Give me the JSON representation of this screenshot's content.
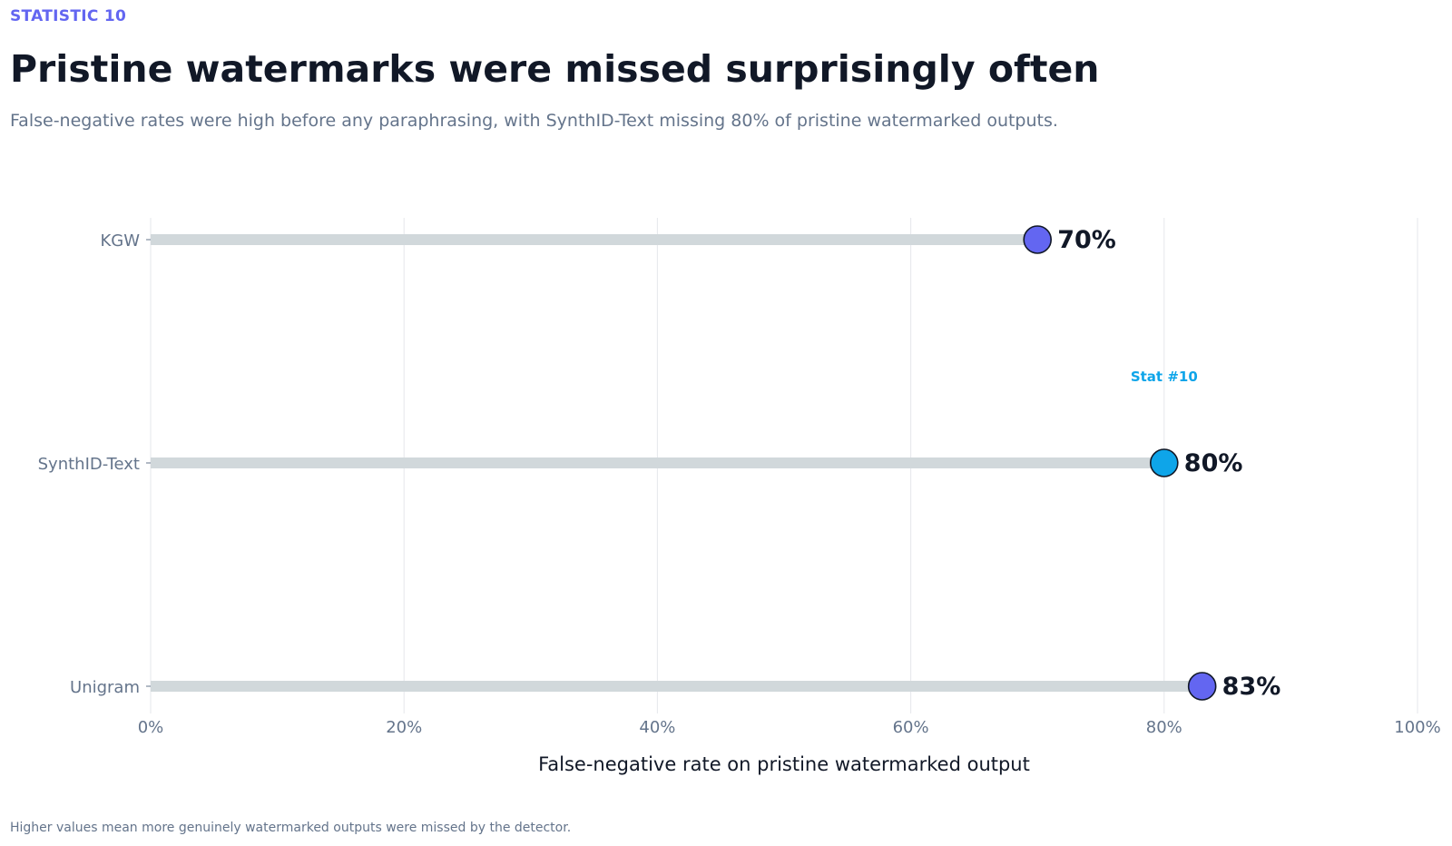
{
  "header": {
    "eyebrow": "STATISTIC 10",
    "title": "Pristine watermarks were missed surprisingly often",
    "subtitle": "False-negative rates were high before any paraphrasing, with SynthID-Text missing 80% of pristine watermarked outputs."
  },
  "footnote": "Higher values mean more genuinely watermarked outputs were missed by the detector.",
  "colors": {
    "default_dot": "#6366f1",
    "highlight_dot": "#0ea5e9",
    "track": "#d1d8db",
    "grid": "#e5e7eb",
    "axis_text": "#64748b",
    "value_text": "#111827"
  },
  "chart_data": {
    "type": "lollipop",
    "categories": [
      "KGW",
      "SynthID-Text",
      "Unigram"
    ],
    "values": [
      70,
      80,
      83
    ],
    "value_labels": [
      "70%",
      "80%",
      "83%"
    ],
    "highlight_index": 1,
    "highlight_annotation": "Stat #10",
    "xlabel": "False-negative rate on pristine watermarked output",
    "xlim": [
      0,
      100
    ],
    "xticks": [
      0,
      20,
      40,
      60,
      80,
      100
    ],
    "xtick_labels": [
      "0%",
      "20%",
      "40%",
      "60%",
      "80%",
      "100%"
    ],
    "grid": true
  }
}
